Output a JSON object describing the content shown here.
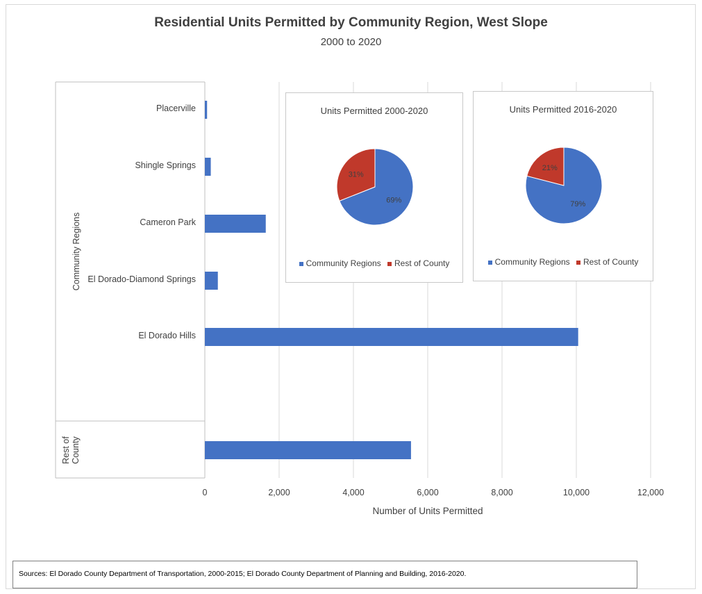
{
  "chart_data": [
    {
      "type": "bar",
      "orientation": "horizontal",
      "title": "Residential Units Permitted by Community Region, West Slope",
      "subtitle": "2000 to 2020",
      "xlabel": "Number of Units Permitted",
      "xlim": [
        0,
        12000
      ],
      "xticks": [
        0,
        2000,
        4000,
        6000,
        8000,
        10000,
        12000
      ],
      "xtick_labels": [
        "0",
        "2,000",
        "4,000",
        "6,000",
        "8,000",
        "10,000",
        "12,000"
      ],
      "groups": [
        {
          "name": "Community Regions",
          "categories": [
            "Placerville",
            "Shingle Springs",
            "Cameron Park",
            "El Dorado-Diamond Springs",
            "El Dorado Hills"
          ],
          "values": [
            60,
            160,
            1640,
            350,
            10050
          ]
        },
        {
          "name": "Rest of County",
          "categories": [
            ""
          ],
          "values": [
            5550
          ]
        }
      ],
      "color": "#4472c4",
      "grid": "vertical"
    },
    {
      "type": "pie",
      "title": "Units Permitted 2000-2020",
      "labels": [
        "Community Regions",
        "Rest of County"
      ],
      "values": [
        69,
        31
      ],
      "value_labels": [
        "69%",
        "31%"
      ],
      "colors": [
        "#4472c4",
        "#c0392b"
      ],
      "legend": "bottom"
    },
    {
      "type": "pie",
      "title": "Units Permitted 2016-2020",
      "labels": [
        "Community Regions",
        "Rest of County"
      ],
      "values": [
        79,
        21
      ],
      "value_labels": [
        "79%",
        "21%"
      ],
      "colors": [
        "#4472c4",
        "#c0392b"
      ],
      "legend": "bottom"
    }
  ],
  "sources": "Sources:  El Dorado County Department of Transportation, 2000-2015; El Dorado County Department of Planning and Building, 2016-2020."
}
